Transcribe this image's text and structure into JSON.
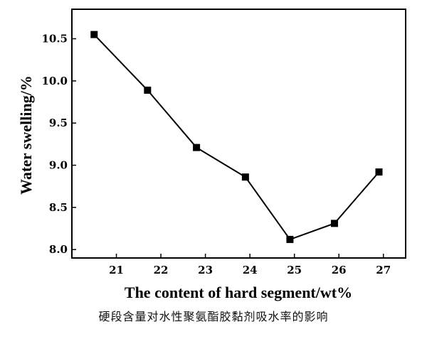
{
  "chart_data": {
    "type": "line",
    "x": [
      20.5,
      21.7,
      22.8,
      23.9,
      24.9,
      25.9,
      26.9
    ],
    "values": [
      10.55,
      9.89,
      9.21,
      8.86,
      8.12,
      8.31,
      8.92
    ],
    "xlabel": "The content of hard segment/wt%",
    "ylabel": "Water swelling/%",
    "xlim": [
      20.0,
      27.5
    ],
    "ylim": [
      7.9,
      10.85
    ],
    "xticks": [
      "21",
      "22",
      "23",
      "24",
      "25",
      "26",
      "27"
    ],
    "yticks": [
      "8.0",
      "8.5",
      "9.0",
      "9.5",
      "10.0",
      "10.5"
    ],
    "marker": "square",
    "grid": false,
    "line_color": "#000000"
  },
  "caption": "硬段含量对水性聚氨酯胶黏剂吸水率的影响"
}
